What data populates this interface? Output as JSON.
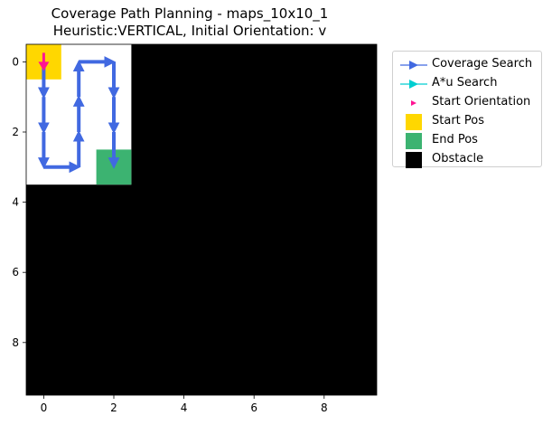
{
  "chart_data": {
    "type": "heatmap",
    "title_lines": [
      "Coverage Path Planning - maps_10x10_1",
      "Heuristic:VERTICAL, Initial Orientation: v"
    ],
    "xlabel": "",
    "ylabel": "",
    "xlim": [
      -0.5,
      9.5
    ],
    "ylim": [
      9.5,
      -0.5
    ],
    "x_ticks": [
      0,
      2,
      4,
      6,
      8
    ],
    "y_ticks": [
      0,
      2,
      4,
      6,
      8
    ],
    "grid": false,
    "legend_position": "outside-right",
    "free_region": {
      "cols": [
        0,
        2
      ],
      "rows": [
        0,
        3
      ]
    },
    "obstacle_background": true,
    "start_pos": [
      0,
      0
    ],
    "end_pos": [
      2,
      3
    ],
    "start_orientation": "v",
    "coverage_path": [
      [
        0,
        0
      ],
      [
        0,
        1
      ],
      [
        0,
        2
      ],
      [
        0,
        3
      ],
      [
        1,
        3
      ],
      [
        1,
        2
      ],
      [
        1,
        1
      ],
      [
        1,
        0
      ],
      [
        2,
        0
      ],
      [
        2,
        1
      ],
      [
        2,
        2
      ],
      [
        2,
        3
      ]
    ],
    "legend": [
      {
        "label": "Coverage Search",
        "symbol": "line-arrow",
        "color": "#4169e1"
      },
      {
        "label": "A*u Search",
        "symbol": "line-arrow",
        "color": "#00ced1"
      },
      {
        "label": "Start Orientation",
        "symbol": "small-arrow",
        "color": "#ff1493"
      },
      {
        "label": "Start Pos",
        "symbol": "square",
        "color": "#ffd700"
      },
      {
        "label": "End Pos",
        "symbol": "square",
        "color": "#3cb371"
      },
      {
        "label": "Obstacle",
        "symbol": "square",
        "color": "#000000"
      }
    ],
    "colors": {
      "free": "#ffffff",
      "obstacle": "#000000",
      "path": "#4169e1"
    }
  }
}
